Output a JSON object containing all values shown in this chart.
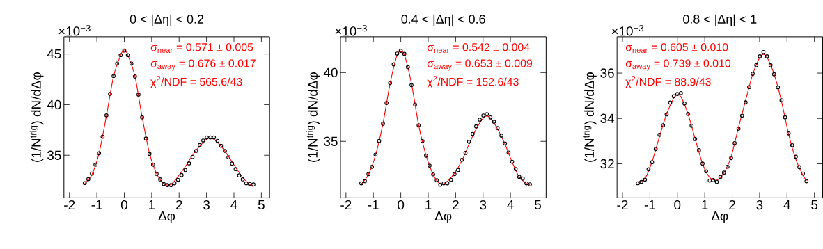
{
  "chart_data": [
    {
      "type": "scatter",
      "title": "0 < |Δη| < 0.2",
      "xlabel": "Δφ",
      "ylabel": "(1/N$^{trig}$) dN/dΔφ",
      "xlim": [
        -2.2,
        5.3
      ],
      "ylim": [
        30.8,
        46.7
      ],
      "xticks": [
        -2,
        -1,
        0,
        1,
        2,
        3,
        4,
        5
      ],
      "yticks": [
        35,
        40,
        45
      ],
      "annotations": [
        "×10$^{−3}$",
        "σ$_{near}$ = 0.571 ± 0.005",
        "σ$_{away}$ = 0.676 ± 0.017",
        "χ$^{2}$/NDF = 565.6/43"
      ],
      "series": [
        {
          "marker": "circle",
          "color": "#000000",
          "x": [
            -1.44,
            -1.31,
            -1.18,
            -1.05,
            -0.92,
            -0.79,
            -0.65,
            -0.52,
            -0.39,
            -0.26,
            -0.13,
            0,
            0.13,
            0.26,
            0.39,
            0.52,
            0.65,
            0.79,
            0.92,
            1.05,
            1.18,
            1.31,
            1.44,
            1.57,
            1.7,
            1.83,
            1.96,
            2.09,
            2.23,
            2.36,
            2.49,
            2.62,
            2.75,
            2.88,
            3.01,
            3.14,
            3.27,
            3.4,
            3.53,
            3.67,
            3.8,
            3.93,
            4.06,
            4.19,
            4.32,
            4.45,
            4.58,
            4.71
          ],
          "values": [
            32.25,
            32.64,
            33.19,
            34.08,
            35.2,
            36.83,
            38.94,
            41.06,
            42.83,
            44.06,
            44.89,
            45.34,
            44.89,
            44.06,
            42.78,
            41.0,
            38.75,
            36.65,
            35.14,
            34.08,
            33.17,
            32.62,
            32.16,
            32.05,
            32.05,
            32.23,
            32.57,
            33.05,
            33.54,
            34.2,
            34.82,
            35.43,
            36.0,
            36.46,
            36.76,
            36.76,
            36.76,
            36.42,
            35.94,
            35.43,
            34.8,
            34.18,
            33.63,
            33.01,
            32.62,
            32.23,
            32.16,
            32.12
          ]
        },
        {
          "type": "line",
          "color": "#ff0000",
          "x": [
            -1.44,
            -1.18,
            -0.92,
            -0.65,
            -0.39,
            -0.13,
            0,
            0.13,
            0.39,
            0.65,
            0.92,
            1.18,
            1.44,
            1.7,
            1.96,
            2.23,
            2.49,
            2.75,
            3.01,
            3.14,
            3.27,
            3.53,
            3.8,
            4.06,
            4.32,
            4.58,
            4.71
          ],
          "values": [
            32.2,
            33.1,
            35.2,
            38.9,
            42.8,
            44.9,
            45.4,
            44.9,
            42.8,
            38.8,
            35.2,
            33.2,
            32.2,
            32.1,
            32.9,
            33.9,
            35.0,
            35.9,
            36.6,
            36.7,
            36.6,
            35.9,
            34.9,
            33.8,
            32.8,
            32.1,
            31.9
          ]
        }
      ]
    },
    {
      "type": "scatter",
      "title": "0.4 < |Δη| < 0.6",
      "xlabel": "Δφ",
      "ylabel": "(1/N$^{trig}$) dN/dΔφ",
      "xlim": [
        -2.2,
        5.3
      ],
      "ylim": [
        30.9,
        42.6
      ],
      "xticks": [
        -2,
        -1,
        0,
        1,
        2,
        3,
        4,
        5
      ],
      "yticks": [
        35,
        40
      ],
      "annotations": [
        "×10$^{−3}$",
        "σ$_{near}$ = 0.542 ± 0.004",
        "σ$_{away}$ = 0.653 ± 0.009",
        "χ$^{2}$/NDF = 152.6/43"
      ],
      "series": [
        {
          "marker": "circle",
          "color": "#000000",
          "x": [
            -1.44,
            -1.31,
            -1.18,
            -1.05,
            -0.92,
            -0.79,
            -0.65,
            -0.52,
            -0.39,
            -0.26,
            -0.13,
            0,
            0.13,
            0.26,
            0.39,
            0.52,
            0.65,
            0.79,
            0.92,
            1.05,
            1.18,
            1.31,
            1.44,
            1.57,
            1.7,
            1.83,
            1.96,
            2.09,
            2.23,
            2.36,
            2.49,
            2.62,
            2.75,
            2.88,
            3.01,
            3.14,
            3.27,
            3.4,
            3.53,
            3.67,
            3.8,
            3.93,
            4.06,
            4.19,
            4.32,
            4.45,
            4.58,
            4.71
          ],
          "values": [
            31.95,
            32.11,
            32.62,
            33.15,
            34.04,
            35.03,
            36.28,
            37.79,
            39.24,
            40.6,
            41.38,
            41.58,
            41.36,
            40.4,
            39.09,
            37.68,
            36.17,
            35.02,
            33.96,
            33.24,
            32.6,
            32.18,
            31.85,
            31.95,
            31.95,
            32.21,
            32.62,
            32.92,
            33.66,
            34.16,
            34.97,
            35.54,
            36.09,
            36.58,
            36.88,
            36.98,
            36.74,
            36.43,
            35.97,
            35.42,
            34.85,
            34.19,
            33.52,
            32.99,
            32.42,
            32.3,
            31.95,
            31.88
          ]
        },
        {
          "type": "line",
          "color": "#ff0000",
          "x": [
            -1.44,
            -1.18,
            -0.92,
            -0.65,
            -0.39,
            -0.13,
            0,
            0.13,
            0.39,
            0.65,
            0.92,
            1.18,
            1.44,
            1.7,
            1.96,
            2.23,
            2.49,
            2.75,
            3.01,
            3.14,
            3.27,
            3.53,
            3.8,
            4.06,
            4.32,
            4.58,
            4.71
          ],
          "values": [
            31.9,
            32.6,
            34.0,
            36.3,
            39.2,
            41.3,
            41.5,
            41.3,
            39.2,
            36.2,
            34.0,
            32.6,
            31.9,
            32.1,
            32.7,
            33.6,
            34.8,
            35.9,
            36.7,
            36.85,
            36.7,
            35.9,
            34.8,
            33.5,
            32.4,
            31.95,
            31.85
          ]
        }
      ]
    },
    {
      "type": "scatter",
      "title": "0.8 < |Δη| < 1",
      "xlabel": "Δφ",
      "ylabel": "(1/N$^{trig}$) dN/dΔφ",
      "xlim": [
        -2.2,
        5.3
      ],
      "ylim": [
        30.5,
        37.6
      ],
      "xticks": [
        -2,
        -1,
        0,
        1,
        2,
        3,
        4,
        5
      ],
      "yticks": [
        32,
        34,
        36
      ],
      "annotations": [
        "×10$^{−3}$",
        "σ$_{near}$ = 0.605 ± 0.010",
        "σ$_{away}$ = 0.739 ± 0.010",
        "χ$^{2}$/NDF = 88.9/43"
      ],
      "series": [
        {
          "marker": "circle",
          "color": "#000000",
          "x": [
            -1.44,
            -1.31,
            -1.18,
            -1.05,
            -0.92,
            -0.79,
            -0.65,
            -0.52,
            -0.39,
            -0.26,
            -0.13,
            0,
            0.13,
            0.26,
            0.39,
            0.52,
            0.65,
            0.79,
            0.92,
            1.05,
            1.18,
            1.31,
            1.44,
            1.57,
            1.7,
            1.83,
            1.96,
            2.09,
            2.23,
            2.36,
            2.49,
            2.62,
            2.75,
            2.88,
            3.01,
            3.14,
            3.27,
            3.4,
            3.53,
            3.67,
            3.8,
            3.93,
            4.06,
            4.19,
            4.32,
            4.45,
            4.58,
            4.71
          ],
          "values": [
            31.14,
            31.2,
            31.3,
            31.76,
            32.07,
            32.65,
            33.28,
            33.7,
            34.18,
            34.7,
            34.98,
            35.08,
            35.12,
            34.66,
            34.2,
            33.68,
            33.09,
            32.6,
            32.01,
            31.67,
            31.26,
            31.28,
            31.2,
            31.42,
            31.61,
            31.87,
            32.25,
            32.91,
            33.55,
            34.12,
            34.71,
            35.38,
            35.97,
            36.35,
            36.74,
            36.93,
            36.74,
            36.35,
            35.95,
            35.37,
            34.8,
            34.05,
            33.34,
            32.82,
            32.31,
            31.85,
            31.57,
            31.23
          ]
        },
        {
          "type": "line",
          "color": "#ff0000",
          "x": [
            -1.44,
            -1.18,
            -0.92,
            -0.65,
            -0.39,
            -0.13,
            0,
            0.13,
            0.39,
            0.65,
            0.92,
            1.18,
            1.44,
            1.7,
            1.96,
            2.23,
            2.49,
            2.75,
            3.01,
            3.14,
            3.27,
            3.53,
            3.8,
            4.06,
            4.32,
            4.58,
            4.71
          ],
          "values": [
            31.2,
            31.35,
            32.1,
            33.2,
            34.2,
            34.9,
            35.05,
            34.95,
            34.2,
            33.1,
            32.0,
            31.4,
            31.28,
            31.6,
            32.3,
            33.6,
            34.8,
            35.95,
            36.7,
            36.82,
            36.7,
            35.95,
            34.75,
            33.3,
            32.2,
            31.5,
            31.25
          ]
        }
      ]
    }
  ]
}
